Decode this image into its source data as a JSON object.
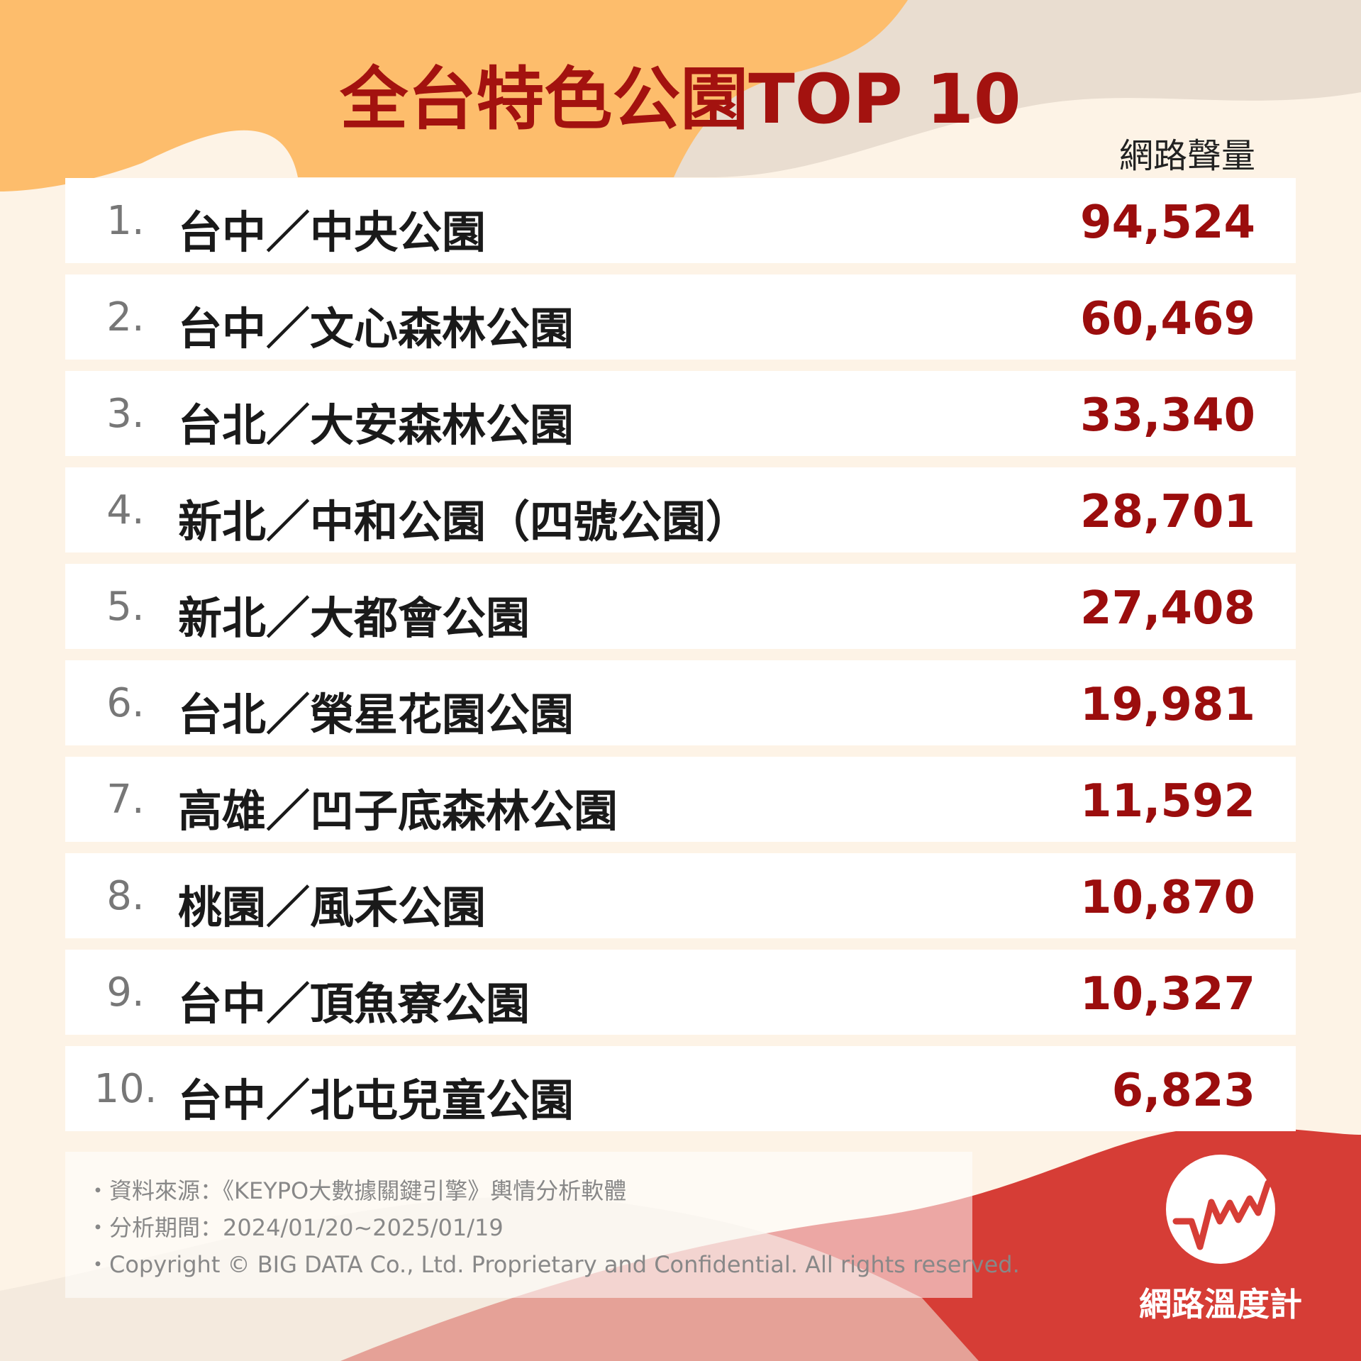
{
  "title": "全台特色公園TOP 10",
  "table": {
    "header": "網路聲量",
    "rows": [
      [
        "1.",
        "台中／中央公園",
        "94,524"
      ],
      [
        "2.",
        "台中／文心森林公園",
        "60,469"
      ],
      [
        "3.",
        "台北／大安森林公園",
        "33,340"
      ],
      [
        "4.",
        "新北／中和公園（四號公園）",
        "28,701"
      ],
      [
        "5.",
        "新北／大都會公園",
        "27,408"
      ],
      [
        "6.",
        "台北／榮星花園公園",
        "19,981"
      ],
      [
        "7.",
        "高雄／凹子底森林公園",
        "11,592"
      ],
      [
        "8.",
        "桃園／風禾公園",
        "10,870"
      ],
      [
        "9.",
        "台中／頂魚寮公園",
        "10,327"
      ],
      [
        "10.",
        "台中／北屯兒童公園",
        "6,823"
      ]
    ]
  },
  "footer": [
    "・資料來源：《KEYPO大數據關鍵引擎》輿情分析軟體",
    "・分析期間：2024/01/20~2025/01/19",
    "・Copyright © BIG DATA Co., Ltd. Proprietary and Confidential. All rights reserved."
  ],
  "logo": "網路溫度計"
}
